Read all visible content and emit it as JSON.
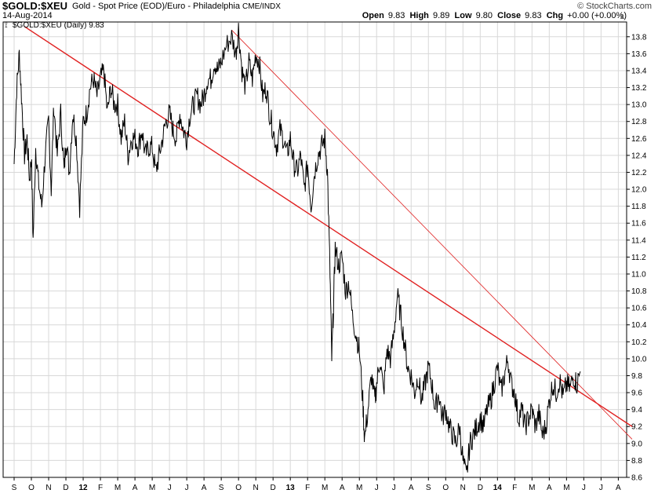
{
  "header": {
    "symbol": "$GOLD:$XEU",
    "description": "Gold - Spot Price (EOD)/Euro - Philadelphia",
    "exchange": "CME/INDX",
    "copyright": "© StockCharts.com",
    "date": "14-Aug-2014",
    "quote": {
      "open_label": "Open",
      "open": "9.83",
      "high_label": "High",
      "high": "9.89",
      "low_label": "Low",
      "low": "9.80",
      "close_label": "Close",
      "close": "9.83",
      "chg_label": "Chg",
      "chg": "+0.00 (+0.00%)"
    },
    "collapse_icon": "triangle-up-icon"
  },
  "legend": {
    "icon": "chart-icon",
    "text": "$GOLD:$XEU (Daily) 9.83"
  },
  "colors": {
    "price": "#000000",
    "trendline": "#e02020",
    "grid": "#d8d8d8",
    "frame": "#000000"
  },
  "chart_data": {
    "type": "line",
    "title": "$GOLD:$XEU (Daily) 9.83",
    "xlabel": "",
    "ylabel": "",
    "ylim": [
      8.6,
      13.9
    ],
    "grid": true,
    "y_axis_side": "right",
    "yticks": [
      "8.6",
      "8.8",
      "9.0",
      "9.2",
      "9.4",
      "9.6",
      "9.8",
      "10.0",
      "10.2",
      "10.4",
      "10.6",
      "10.8",
      "11.0",
      "11.2",
      "11.4",
      "11.6",
      "11.8",
      "12.0",
      "12.2",
      "12.4",
      "12.6",
      "12.8",
      "13.0",
      "13.2",
      "13.4",
      "13.6",
      "13.8"
    ],
    "xticks": [
      "S",
      "O",
      "N",
      "D",
      "12",
      "F",
      "M",
      "A",
      "M",
      "J",
      "J",
      "A",
      "S",
      "O",
      "N",
      "D",
      "13",
      "F",
      "M",
      "A",
      "M",
      "J",
      "J",
      "A",
      "S",
      "O",
      "N",
      "D",
      "14",
      "F",
      "M",
      "A",
      "M",
      "J",
      "J",
      "A"
    ],
    "xtick_bold": [
      "12",
      "13",
      "14"
    ],
    "month_index_of_xticks": [
      0,
      1,
      2,
      3,
      4,
      5,
      6,
      7,
      8,
      9,
      10,
      11,
      12,
      13,
      14,
      15,
      16,
      17,
      18,
      19,
      20,
      21,
      22,
      23,
      24,
      25,
      26,
      27,
      28,
      29,
      30,
      31,
      32,
      33,
      34,
      35
    ],
    "series": [
      {
        "values_by_month_fraction": [
          [
            0.0,
            12.3
          ],
          [
            0.15,
            13.2
          ],
          [
            0.3,
            13.6
          ],
          [
            0.45,
            13.0
          ],
          [
            0.6,
            12.4
          ],
          [
            0.75,
            12.6
          ],
          [
            0.9,
            12.1
          ],
          [
            1.0,
            12.4
          ],
          [
            1.1,
            11.4
          ],
          [
            1.25,
            12.5
          ],
          [
            1.4,
            12.1
          ],
          [
            1.6,
            11.8
          ],
          [
            1.8,
            12.4
          ],
          [
            2.0,
            12.8
          ],
          [
            2.15,
            12.0
          ],
          [
            2.3,
            13.0
          ],
          [
            2.5,
            12.4
          ],
          [
            2.7,
            12.9
          ],
          [
            2.9,
            12.2
          ],
          [
            3.0,
            12.6
          ],
          [
            3.2,
            12.2
          ],
          [
            3.4,
            12.9
          ],
          [
            3.6,
            12.6
          ],
          [
            3.8,
            11.8
          ],
          [
            4.0,
            12.8
          ],
          [
            4.2,
            12.9
          ],
          [
            4.4,
            13.2
          ],
          [
            4.6,
            13.3
          ],
          [
            4.8,
            13.1
          ],
          [
            5.0,
            13.3
          ],
          [
            5.2,
            13.4
          ],
          [
            5.4,
            12.9
          ],
          [
            5.6,
            13.2
          ],
          [
            5.8,
            13.0
          ],
          [
            6.0,
            13.0
          ],
          [
            6.2,
            12.6
          ],
          [
            6.4,
            12.8
          ],
          [
            6.6,
            12.4
          ],
          [
            6.8,
            12.6
          ],
          [
            7.0,
            12.6
          ],
          [
            7.2,
            12.5
          ],
          [
            7.4,
            12.7
          ],
          [
            7.6,
            12.4
          ],
          [
            7.8,
            12.5
          ],
          [
            8.0,
            12.5
          ],
          [
            8.2,
            12.2
          ],
          [
            8.4,
            12.4
          ],
          [
            8.6,
            12.6
          ],
          [
            8.8,
            12.8
          ],
          [
            9.0,
            12.9
          ],
          [
            9.2,
            12.7
          ],
          [
            9.4,
            12.6
          ],
          [
            9.6,
            12.9
          ],
          [
            9.8,
            12.7
          ],
          [
            10.0,
            12.6
          ],
          [
            10.2,
            12.9
          ],
          [
            10.4,
            13.0
          ],
          [
            10.6,
            13.1
          ],
          [
            10.8,
            13.0
          ],
          [
            11.0,
            13.1
          ],
          [
            11.2,
            13.3
          ],
          [
            11.4,
            13.3
          ],
          [
            11.6,
            13.5
          ],
          [
            11.8,
            13.4
          ],
          [
            12.0,
            13.5
          ],
          [
            12.3,
            13.7
          ],
          [
            12.6,
            13.8
          ],
          [
            12.85,
            13.6
          ],
          [
            13.0,
            13.9
          ],
          [
            13.2,
            13.4
          ],
          [
            13.4,
            13.2
          ],
          [
            13.6,
            13.5
          ],
          [
            13.8,
            13.3
          ],
          [
            14.0,
            13.6
          ],
          [
            14.2,
            13.5
          ],
          [
            14.4,
            13.1
          ],
          [
            14.6,
            13.2
          ],
          [
            14.8,
            12.9
          ],
          [
            15.0,
            12.7
          ],
          [
            15.2,
            12.5
          ],
          [
            15.4,
            12.7
          ],
          [
            15.6,
            12.6
          ],
          [
            15.8,
            12.4
          ],
          [
            16.0,
            12.6
          ],
          [
            16.2,
            12.3
          ],
          [
            16.4,
            12.2
          ],
          [
            16.6,
            12.4
          ],
          [
            16.8,
            12.0
          ],
          [
            17.0,
            12.3
          ],
          [
            17.2,
            11.8
          ],
          [
            17.4,
            12.2
          ],
          [
            17.6,
            12.4
          ],
          [
            17.8,
            12.5
          ],
          [
            18.0,
            12.6
          ],
          [
            18.15,
            12.2
          ],
          [
            18.3,
            11.0
          ],
          [
            18.4,
            10.0
          ],
          [
            18.5,
            10.6
          ],
          [
            18.6,
            11.3
          ],
          [
            18.8,
            11.1
          ],
          [
            19.0,
            11.2
          ],
          [
            19.2,
            10.8
          ],
          [
            19.4,
            10.9
          ],
          [
            19.6,
            10.5
          ],
          [
            19.8,
            10.3
          ],
          [
            20.0,
            10.1
          ],
          [
            20.2,
            9.5
          ],
          [
            20.3,
            9.05
          ],
          [
            20.5,
            9.4
          ],
          [
            20.7,
            9.8
          ],
          [
            20.9,
            9.5
          ],
          [
            21.0,
            9.7
          ],
          [
            21.2,
            10.0
          ],
          [
            21.4,
            9.6
          ],
          [
            21.6,
            10.1
          ],
          [
            21.8,
            10.0
          ],
          [
            22.0,
            10.3
          ],
          [
            22.2,
            10.75
          ],
          [
            22.4,
            10.5
          ],
          [
            22.6,
            10.2
          ],
          [
            22.8,
            9.9
          ],
          [
            23.0,
            9.8
          ],
          [
            23.2,
            9.6
          ],
          [
            23.4,
            9.8
          ],
          [
            23.6,
            9.5
          ],
          [
            23.8,
            9.7
          ],
          [
            24.0,
            9.9
          ],
          [
            24.2,
            9.7
          ],
          [
            24.4,
            9.4
          ],
          [
            24.6,
            9.6
          ],
          [
            24.8,
            9.3
          ],
          [
            25.0,
            9.4
          ],
          [
            25.2,
            9.2
          ],
          [
            25.4,
            9.1
          ],
          [
            25.6,
            9.0
          ],
          [
            25.8,
            9.2
          ],
          [
            26.0,
            8.8
          ],
          [
            26.2,
            8.6
          ],
          [
            26.4,
            9.0
          ],
          [
            26.6,
            9.1
          ],
          [
            26.8,
            9.2
          ],
          [
            27.0,
            9.3
          ],
          [
            27.2,
            9.2
          ],
          [
            27.4,
            9.4
          ],
          [
            27.6,
            9.5
          ],
          [
            27.8,
            9.7
          ],
          [
            28.0,
            9.9
          ],
          [
            28.2,
            9.6
          ],
          [
            28.4,
            9.8
          ],
          [
            28.6,
            10.0
          ],
          [
            28.8,
            9.7
          ],
          [
            29.0,
            9.6
          ],
          [
            29.2,
            9.3
          ],
          [
            29.4,
            9.4
          ],
          [
            29.6,
            9.2
          ],
          [
            29.8,
            9.3
          ],
          [
            30.0,
            9.4
          ],
          [
            30.2,
            9.2
          ],
          [
            30.4,
            9.35
          ],
          [
            30.6,
            9.1
          ],
          [
            30.8,
            9.2
          ],
          [
            31.0,
            9.5
          ],
          [
            31.2,
            9.7
          ],
          [
            31.4,
            9.6
          ],
          [
            31.6,
            9.75
          ],
          [
            31.8,
            9.55
          ],
          [
            32.0,
            9.7
          ],
          [
            32.2,
            9.65
          ],
          [
            32.4,
            9.8
          ],
          [
            32.6,
            9.7
          ],
          [
            32.8,
            9.85
          ]
        ],
        "name": ""
      }
    ],
    "trendlines": [
      {
        "start": [
          0.6,
          13.92
        ],
        "end": [
          35.8,
          9.2
        ],
        "weight": "heavy"
      },
      {
        "start": [
          12.6,
          13.88
        ],
        "end": [
          35.8,
          9.05
        ],
        "weight": "light"
      }
    ]
  }
}
